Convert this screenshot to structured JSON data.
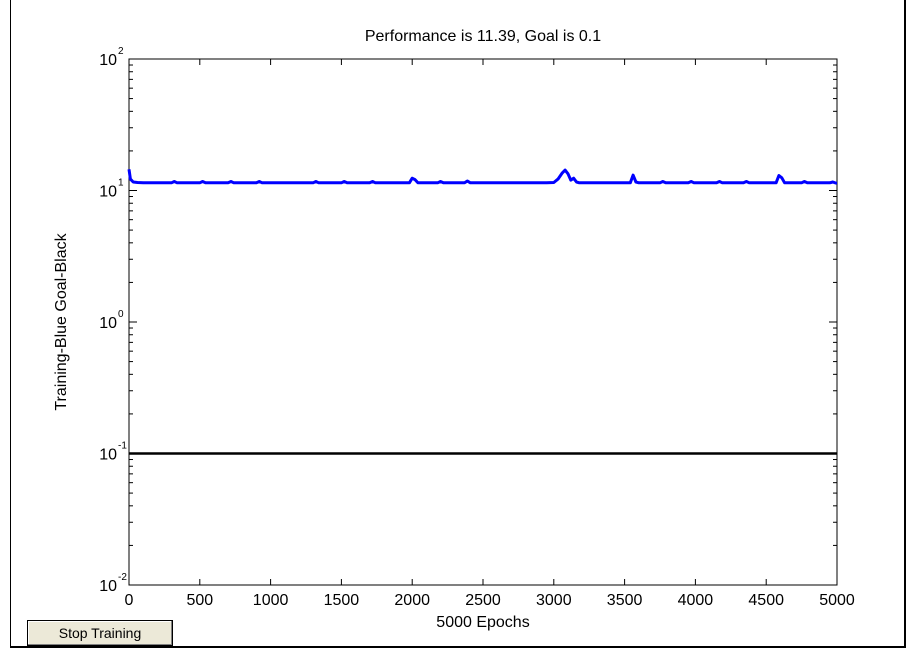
{
  "chart_data": {
    "type": "line",
    "title": "Performance is 11.39, Goal is 0.1",
    "xlabel": "5000 Epochs",
    "ylabel": "Training-Blue  Goal-Black",
    "xlim": [
      0,
      5000
    ],
    "ylim": [
      0.01,
      100
    ],
    "yscale": "log",
    "x_ticks": [
      0,
      500,
      1000,
      1500,
      2000,
      2500,
      3000,
      3500,
      4000,
      4500,
      5000
    ],
    "y_ticks": [
      {
        "base": "10",
        "exp": "-2",
        "value": 0.01
      },
      {
        "base": "10",
        "exp": "-1",
        "value": 0.1
      },
      {
        "base": "10",
        "exp": "0",
        "value": 1
      },
      {
        "base": "10",
        "exp": "1",
        "value": 10
      },
      {
        "base": "10",
        "exp": "2",
        "value": 100
      }
    ],
    "series": [
      {
        "color": "#0000ff",
        "x": [
          0,
          10,
          30,
          60,
          100,
          300,
          320,
          340,
          500,
          520,
          540,
          700,
          720,
          740,
          900,
          920,
          940,
          1300,
          1320,
          1340,
          1500,
          1520,
          1540,
          1700,
          1720,
          1740,
          1980,
          2000,
          2020,
          2040,
          2180,
          2200,
          2220,
          2370,
          2390,
          2410,
          2950,
          3000,
          3030,
          3060,
          3080,
          3100,
          3120,
          3140,
          3160,
          3180,
          3540,
          3560,
          3580,
          3600,
          3750,
          3770,
          3790,
          3950,
          3970,
          3990,
          4150,
          4170,
          4190,
          4340,
          4360,
          4380,
          4570,
          4590,
          4610,
          4630,
          4750,
          4770,
          4790,
          4950,
          4970,
          4990,
          5000
        ],
        "y": [
          14.5,
          12.2,
          11.6,
          11.5,
          11.45,
          11.45,
          11.7,
          11.45,
          11.45,
          11.7,
          11.45,
          11.45,
          11.7,
          11.45,
          11.45,
          11.7,
          11.45,
          11.45,
          11.7,
          11.45,
          11.45,
          11.7,
          11.45,
          11.45,
          11.7,
          11.45,
          11.45,
          12.4,
          12.1,
          11.45,
          11.45,
          11.7,
          11.45,
          11.45,
          11.8,
          11.45,
          11.45,
          11.5,
          12.2,
          13.6,
          14.3,
          13.4,
          12.0,
          12.4,
          11.6,
          11.45,
          11.45,
          13.1,
          11.6,
          11.45,
          11.45,
          11.7,
          11.45,
          11.45,
          11.7,
          11.45,
          11.45,
          11.7,
          11.45,
          11.45,
          11.7,
          11.45,
          11.45,
          13.0,
          12.5,
          11.45,
          11.45,
          11.7,
          11.45,
          11.45,
          11.6,
          11.4,
          11.39
        ]
      },
      {
        "color": "#000000",
        "x": [
          0,
          5000
        ],
        "y": [
          0.1,
          0.1
        ]
      }
    ]
  },
  "controls": {
    "stop_label": "Stop Training"
  }
}
